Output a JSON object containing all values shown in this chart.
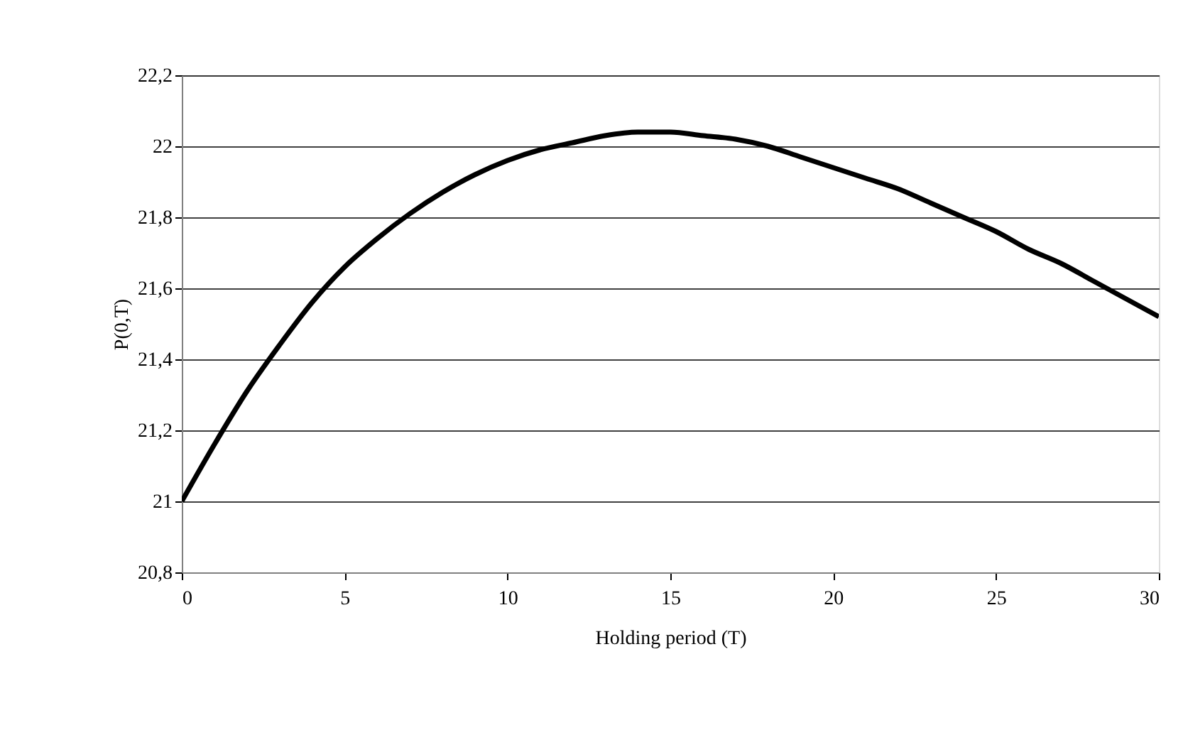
{
  "chart_data": {
    "type": "line",
    "xlabel": "Holding period (T)",
    "ylabel": "P(0,T)",
    "x": [
      0,
      1,
      2,
      3,
      4,
      5,
      6,
      7,
      8,
      9,
      10,
      11,
      12,
      13,
      14,
      15,
      16,
      17,
      18,
      19,
      20,
      21,
      22,
      23,
      24,
      25,
      26,
      27,
      28,
      29,
      30
    ],
    "series": [
      {
        "color": "#000000",
        "values": [
          21.0,
          21.16,
          21.31,
          21.44,
          21.56,
          21.66,
          21.74,
          21.81,
          21.87,
          21.92,
          21.96,
          21.99,
          22.01,
          22.03,
          22.04,
          22.04,
          22.03,
          22.02,
          22.0,
          21.97,
          21.94,
          21.91,
          21.88,
          21.84,
          21.8,
          21.76,
          21.71,
          21.67,
          21.62,
          21.57,
          21.52
        ]
      }
    ],
    "xlim": [
      0,
      30
    ],
    "xticks": [
      0,
      5,
      10,
      15,
      20,
      25,
      30
    ],
    "ylim": [
      20.8,
      22.2
    ],
    "yticks": [
      {
        "value": 20.8,
        "label": "20,8"
      },
      {
        "value": 21,
        "label": "21"
      },
      {
        "value": 21.2,
        "label": "21,2"
      },
      {
        "value": 21.4,
        "label": "21,4"
      },
      {
        "value": 21.6,
        "label": "21,6"
      },
      {
        "value": 21.8,
        "label": "21,8"
      },
      {
        "value": 22,
        "label": "22"
      },
      {
        "value": 22.2,
        "label": "22,2"
      }
    ],
    "grid": "y",
    "marker": "none",
    "line_style": "solid"
  }
}
